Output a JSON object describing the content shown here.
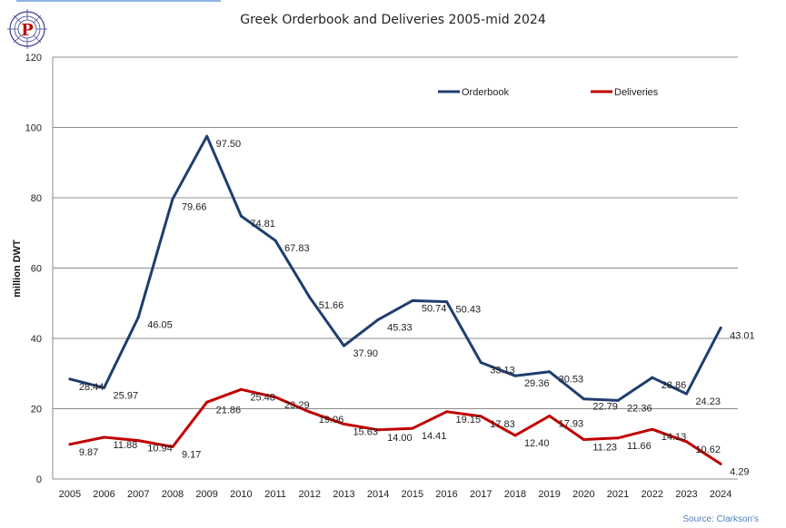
{
  "logo": {
    "letter": "P"
  },
  "chart_data": {
    "type": "line",
    "title": "Greek Orderbook and Deliveries 2005-mid 2024",
    "xlabel": "",
    "ylabel": "million DWT",
    "ylim": [
      0,
      120
    ],
    "yticks": [
      0,
      20,
      40,
      60,
      80,
      100,
      120
    ],
    "grid": true,
    "legend_position": "top-right",
    "categories": [
      "2005",
      "2006",
      "2007",
      "2008",
      "2009",
      "2010",
      "2011",
      "2012",
      "2013",
      "2014",
      "2015",
      "2016",
      "2017",
      "2018",
      "2019",
      "2020",
      "2021",
      "2022",
      "2023",
      "2024"
    ],
    "series": [
      {
        "name": "Orderbook",
        "color": "#1f3e6e",
        "values": [
          28.44,
          25.97,
          46.05,
          79.66,
          97.5,
          74.81,
          67.83,
          51.66,
          37.9,
          45.33,
          50.74,
          50.43,
          33.13,
          29.36,
          30.53,
          22.79,
          22.36,
          28.86,
          24.23,
          43.01
        ],
        "labels": [
          "28.44",
          "25.97",
          "46.05",
          "79.66",
          "97.50",
          "74.81",
          "67.83",
          "51.66",
          "37.90",
          "45.33",
          "50.74",
          "50.43",
          "33.13",
          "29.36",
          "30.53",
          "22.79",
          "22.36",
          "28.86",
          "24.23",
          "43.01"
        ]
      },
      {
        "name": "Deliveries",
        "color": "#c00000",
        "values": [
          9.87,
          11.88,
          10.94,
          9.17,
          21.86,
          25.48,
          23.29,
          19.06,
          15.63,
          14.0,
          14.41,
          19.15,
          17.83,
          12.4,
          17.93,
          11.23,
          11.66,
          14.13,
          10.62,
          4.29
        ],
        "labels": [
          "9.87",
          "11.88",
          "10.94",
          "9.17",
          "21.86",
          "25.48",
          "23.29",
          "19.06",
          "15.63",
          "14.00",
          "14.41",
          "19.15",
          "17.83",
          "12.40",
          "17.93",
          "11.23",
          "11.66",
          "14.13",
          "10.62",
          "4.29"
        ]
      }
    ]
  },
  "source": "Source: Clarkson's"
}
